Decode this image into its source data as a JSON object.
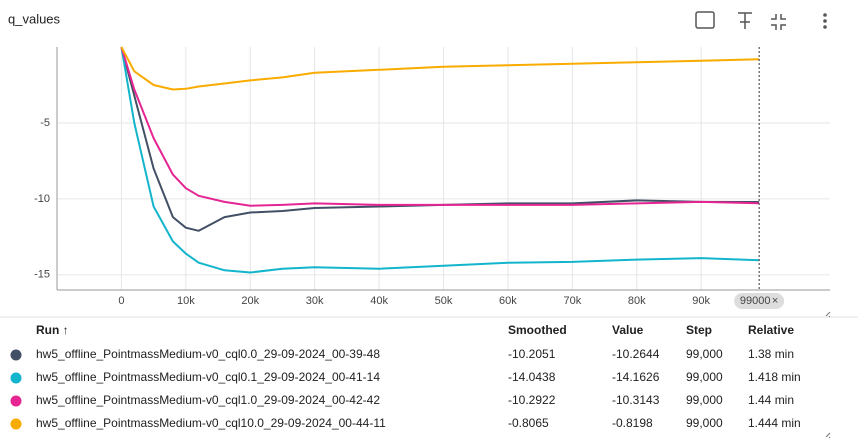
{
  "chart_data": {
    "type": "line",
    "title": "q_values",
    "x": [
      0,
      2000,
      5000,
      8000,
      10000,
      12000,
      16000,
      20000,
      25000,
      30000,
      40000,
      50000,
      60000,
      70000,
      80000,
      90000,
      99000
    ],
    "series": [
      {
        "name": "hw5_offline_PointmassMedium-v0_cql0.0_29-09-2024_00-39-48",
        "color": "#425066",
        "values": [
          0,
          -3.2,
          -8,
          -11.2,
          -11.9,
          -12.1,
          -11.2,
          -10.9,
          -10.8,
          -10.6,
          -10.5,
          -10.4,
          -10.3,
          -10.3,
          -10.1,
          -10.2,
          -10.2051
        ]
      },
      {
        "name": "hw5_offline_PointmassMedium-v0_cql0.1_29-09-2024_00-41-14",
        "color": "#12b5cb",
        "values": [
          0,
          -5,
          -10.5,
          -12.8,
          -13.6,
          -14.2,
          -14.7,
          -14.85,
          -14.6,
          -14.5,
          -14.6,
          -14.4,
          -14.2,
          -14.15,
          -14.0,
          -13.9,
          -14.0438
        ]
      },
      {
        "name": "hw5_offline_PointmassMedium-v0_cql1.0_29-09-2024_00-42-42",
        "color": "#e52592",
        "values": [
          0,
          -2.8,
          -6,
          -8.4,
          -9.3,
          -9.8,
          -10.2,
          -10.45,
          -10.4,
          -10.3,
          -10.4,
          -10.4,
          -10.4,
          -10.4,
          -10.3,
          -10.2,
          -10.2922
        ]
      },
      {
        "name": "hw5_offline_PointmassMedium-v0_cql10.0_29-09-2024_00-44-11",
        "color": "#f9ab00",
        "values": [
          0,
          -1.6,
          -2.5,
          -2.8,
          -2.75,
          -2.6,
          -2.4,
          -2.2,
          -2.0,
          -1.7,
          -1.5,
          -1.3,
          -1.2,
          -1.1,
          -1.0,
          -0.9,
          -0.8065
        ]
      }
    ],
    "xlim": [
      -10000,
      110000
    ],
    "ylim": [
      -16,
      0
    ],
    "xticks": [
      0,
      {
        "value": 10000,
        "label": "10k"
      },
      {
        "value": 20000,
        "label": "20k"
      },
      {
        "value": 30000,
        "label": "30k"
      },
      {
        "value": 40000,
        "label": "40k"
      },
      {
        "value": 50000,
        "label": "50k"
      },
      {
        "value": 60000,
        "label": "60k"
      },
      {
        "value": 70000,
        "label": "70k"
      },
      {
        "value": 80000,
        "label": "80k"
      },
      {
        "value": 90000,
        "label": "90k"
      }
    ],
    "yticks": [
      -5,
      -10,
      -15
    ],
    "grid": true,
    "hover_step": {
      "value": 99000,
      "label": "99000"
    }
  },
  "table": {
    "columns": [
      "Run ↑",
      "Smoothed",
      "Value",
      "Step",
      "Relative"
    ],
    "rows": [
      [
        "hw5_offline_PointmassMedium-v0_cql0.0_29-09-2024_00-39-48",
        "-10.2051",
        "-10.2644",
        "99,000",
        "1.38 min"
      ],
      [
        "hw5_offline_PointmassMedium-v0_cql0.1_29-09-2024_00-41-14",
        "-14.0438",
        "-14.1626",
        "99,000",
        "1.418 min"
      ],
      [
        "hw5_offline_PointmassMedium-v0_cql1.0_29-09-2024_00-42-42",
        "-10.2922",
        "-10.3143",
        "99,000",
        "1.44 min"
      ],
      [
        "hw5_offline_PointmassMedium-v0_cql10.0_29-09-2024_00-44-11",
        "-0.8065",
        "-0.8198",
        "99,000",
        "1.444 min"
      ]
    ]
  }
}
